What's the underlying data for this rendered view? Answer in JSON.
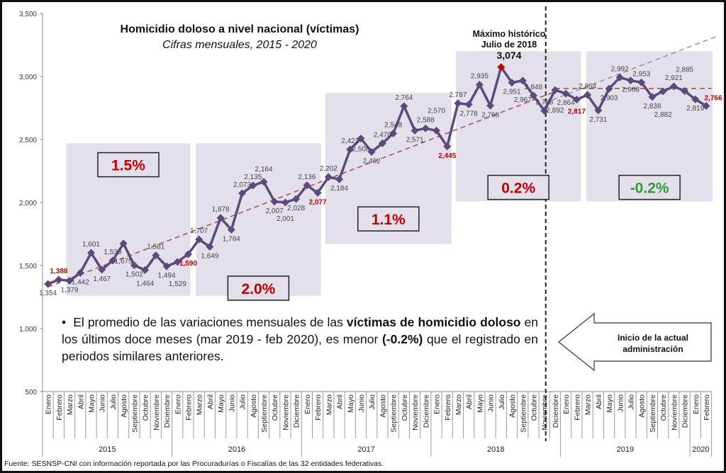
{
  "chart_data": {
    "type": "line",
    "title": "Homicidio doloso a nivel nacional (víctimas)",
    "subtitle": "Cifras mensuales, 2015 - 2020",
    "ylim": [
      500,
      3500
    ],
    "yticks": [
      "500",
      "1,000",
      "1,500",
      "2,000",
      "2,500",
      "3,000",
      "3,500"
    ],
    "ytick_values": [
      500,
      1000,
      1500,
      2000,
      2500,
      3000,
      3500
    ],
    "grid": false,
    "months": [
      "Enero",
      "Febrero",
      "Marzo",
      "Abril",
      "Mayo",
      "Junio",
      "Julio",
      "Agosto",
      "Septiembre",
      "Octubre",
      "Noviembre",
      "Diciembre"
    ],
    "years": [
      {
        "label": "2015",
        "months": 12
      },
      {
        "label": "2016",
        "months": 12
      },
      {
        "label": "2017",
        "months": 12
      },
      {
        "label": "2018",
        "months": 12
      },
      {
        "label": "2019",
        "months": 12
      },
      {
        "label": "2020",
        "months": 2
      }
    ],
    "values": [
      1354,
      1388,
      1379,
      1442,
      1601,
      1467,
      1539,
      1675,
      1502,
      1464,
      1581,
      1494,
      1529,
      1590,
      1707,
      1649,
      1878,
      1784,
      2073,
      2135,
      2164,
      2007,
      2001,
      2028,
      2136,
      2077,
      2202,
      2184,
      2421,
      2508,
      2402,
      2470,
      2548,
      2764,
      2571,
      2588,
      2570,
      2445,
      2787,
      2778,
      2935,
      2768,
      3074,
      2951,
      2967,
      2848,
      2728,
      2892,
      2864,
      2817,
      2854,
      2731,
      2903,
      2992,
      2968,
      2953,
      2838,
      2882,
      2921,
      2885,
      2819,
      2766
    ],
    "series_color": "#5b4a7a",
    "highlight_color": "#c00000",
    "peak": {
      "title_line1": "Máximo histórico",
      "title_line2": "Julio de 2018",
      "value_label": "3,074"
    },
    "trend_lines": [
      {
        "color": "#b05050",
        "from": {
          "month": "Enero 2015",
          "value": 1330
        },
        "to": {
          "month": "Diciembre 2018",
          "value": 2880
        }
      },
      {
        "color": "#999999",
        "from": {
          "month": "Noviembre 2018",
          "value": 2790
        },
        "to": {
          "month": "Febrero 2020",
          "value": 3320
        }
      },
      {
        "color": "#b05050",
        "from": {
          "month": "Diciembre 2018",
          "value": 2905
        },
        "to": {
          "month": "Febrero 2020",
          "value": 2905
        }
      }
    ],
    "period_variations": [
      {
        "label": "1.5%",
        "color": "#c00000"
      },
      {
        "label": "2.0%",
        "color": "#c00000"
      },
      {
        "label": "1.1%",
        "color": "#c00000"
      },
      {
        "label": "0.2%",
        "color": "#c00000"
      },
      {
        "label": "-0.2%",
        "color": "#2e9e2e"
      }
    ],
    "shade_color": "#e3e0ec"
  },
  "note": {
    "part1": "El promedio de las variaciones mensuales de las ",
    "bold1": "víctimas de homicidio doloso",
    "part2": " en los últimos doce meses (mar 2019 - feb 2020), es menor ",
    "bold2": "(-0.2%)",
    "part3": " que el registrado en periodos similares anteriores."
  },
  "arrow_label": {
    "line1": "Inicio de la actual",
    "line2": "administración"
  },
  "source": "Fuente: SESNSP-CNI con información reportada por las Procuradurías o Fiscalías de las 32 entidades federativas."
}
